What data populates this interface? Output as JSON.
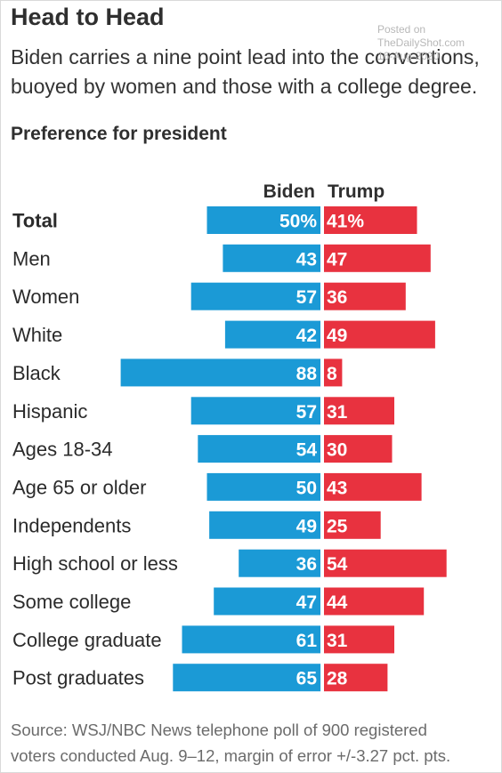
{
  "header": {
    "title": "Head to Head",
    "subtitle_lines": [
      "Biden carries a nine point lead into the conventions,",
      "buoyed by women and those with a college degree."
    ]
  },
  "watermark": {
    "lines": [
      "Posted on",
      "TheDailyShot.com",
      "16-Aug-2020"
    ]
  },
  "footer": {
    "source_lines": [
      "Source: WSJ/NBC News telephone poll of 900 registered",
      "voters conducted Aug. 9–12, margin of error +/-3.27 pct. pts."
    ]
  },
  "colors": {
    "biden": "#1b9ad6",
    "trump": "#e8323f",
    "label_text": "#ffffff",
    "category_text": "#2b2b2b"
  },
  "chart_data": {
    "type": "bar",
    "orientation": "diverging-horizontal",
    "title": "Preference for president",
    "value_unit": "%",
    "categories": [
      "Total",
      "Men",
      "Women",
      "White",
      "Black",
      "Hispanic",
      "Ages 18-34",
      "Age 65 or older",
      "Independents",
      "High school or less",
      "Some college",
      "College graduate",
      "Post graduates"
    ],
    "series": [
      {
        "name": "Biden",
        "values": [
          50,
          43,
          57,
          42,
          88,
          57,
          54,
          50,
          49,
          36,
          47,
          61,
          65
        ]
      },
      {
        "name": "Trump",
        "values": [
          41,
          47,
          36,
          49,
          8,
          31,
          30,
          43,
          25,
          54,
          44,
          31,
          28
        ]
      }
    ],
    "first_row_labels": [
      "50%",
      "41%"
    ],
    "bold_categories": [
      "Total"
    ],
    "legend": "top-center"
  }
}
